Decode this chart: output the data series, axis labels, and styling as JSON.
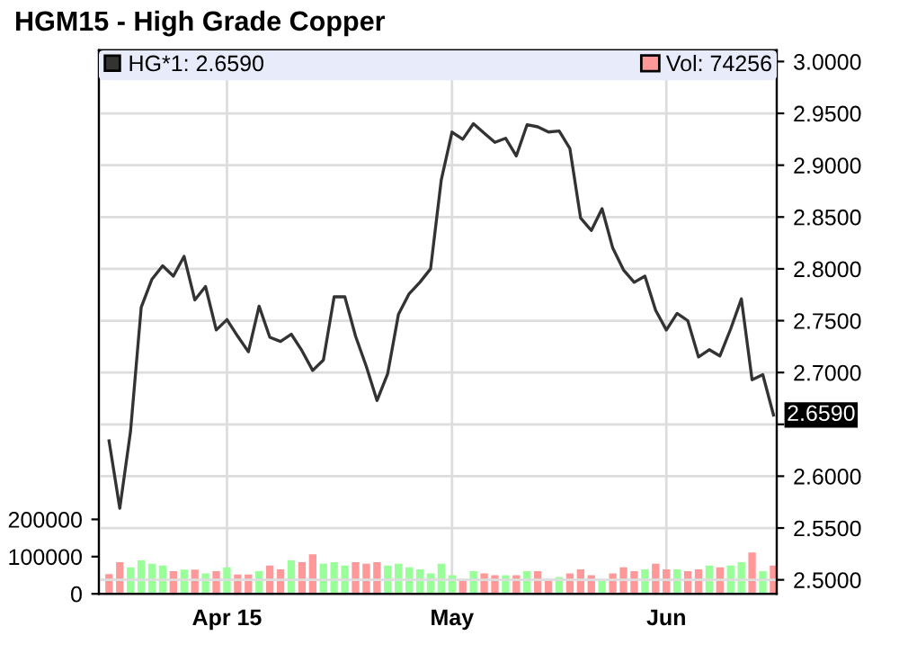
{
  "chart_data": {
    "type": "line",
    "title": "HGM15 - High Grade Copper",
    "categories": [
      null,
      null,
      null,
      null,
      null,
      null,
      null,
      null,
      null,
      null,
      null,
      "Apr 15",
      null,
      null,
      null,
      null,
      null,
      null,
      null,
      null,
      null,
      null,
      null,
      null,
      null,
      null,
      null,
      null,
      null,
      null,
      null,
      null,
      "May",
      null,
      null,
      null,
      null,
      null,
      null,
      null,
      null,
      null,
      null,
      null,
      null,
      null,
      null,
      null,
      null,
      null,
      null,
      null,
      "Jun",
      null,
      null,
      null,
      null,
      null,
      null,
      null,
      null,
      null,
      null
    ],
    "ylim": [
      0,
      1460000
    ],
    "yticks": [
      0,
      100000,
      200000
    ],
    "y2lim": [
      2.4865,
      3.0108
    ],
    "y2ticks": [
      {
        "value": 2.5,
        "label": "2.5000"
      },
      {
        "value": 2.55,
        "label": "2.5500"
      },
      {
        "value": 2.6,
        "label": "2.6000"
      },
      {
        "value": 2.65,
        "label": null
      },
      {
        "value": 2.7,
        "label": "2.7000"
      },
      {
        "value": 2.75,
        "label": "2.7500"
      },
      {
        "value": 2.8,
        "label": "2.8000"
      },
      {
        "value": 2.85,
        "label": "2.8500"
      },
      {
        "value": 2.9,
        "label": "2.9000"
      },
      {
        "value": 2.95,
        "label": "2.9500"
      },
      {
        "value": 3.0,
        "label": "3.0000"
      }
    ],
    "grid": true,
    "legend": "top left",
    "annotations": [
      "2.6590"
    ],
    "series": [
      {
        "name": "HG*1: 2.6590",
        "axis": "y2",
        "color": "#333333",
        "values": [
          2.634,
          2.569,
          2.643,
          2.763,
          2.79,
          2.803,
          2.793,
          2.812,
          2.77,
          2.783,
          2.741,
          2.751,
          2.735,
          2.72,
          2.764,
          2.734,
          2.73,
          2.737,
          2.721,
          2.702,
          2.712,
          2.773,
          2.773,
          2.735,
          2.706,
          2.673,
          2.699,
          2.756,
          2.776,
          2.787,
          2.8,
          2.886,
          2.932,
          2.925,
          2.94,
          2.931,
          2.922,
          2.926,
          2.909,
          2.939,
          2.937,
          2.932,
          2.933,
          2.916,
          2.849,
          2.837,
          2.858,
          2.82,
          2.799,
          2.787,
          2.793,
          2.76,
          2.741,
          2.757,
          2.75,
          2.715,
          2.722,
          2.716,
          2.742,
          2.771,
          2.693,
          2.698,
          2.659
        ]
      },
      {
        "name": "Vol: 74256",
        "type": "bar",
        "axis": "y",
        "color": "#ff9999",
        "values": [
          53000,
          85000,
          71000,
          90000,
          81000,
          76000,
          61000,
          65000,
          65000,
          55000,
          61000,
          71000,
          52000,
          52000,
          61000,
          76000,
          66000,
          90000,
          85000,
          106000,
          81000,
          85000,
          76000,
          85000,
          81000,
          85000,
          76000,
          81000,
          71000,
          66000,
          55000,
          81000,
          50000,
          35000,
          61000,
          55000,
          50000,
          50000,
          50000,
          61000,
          61000,
          40000,
          45000,
          55000,
          66000,
          50000,
          40000,
          55000,
          71000,
          61000,
          66000,
          81000,
          66000,
          66000,
          61000,
          66000,
          76000,
          71000,
          76000,
          85000,
          111000,
          61000,
          76000
        ],
        "colors": [
          "#ff9999",
          "#ff9999",
          "#99ff99",
          "#99ff99",
          "#99ff99",
          "#99ff99",
          "#ff9999",
          "#99ff99",
          "#ff9999",
          "#99ff99",
          "#ff9999",
          "#99ff99",
          "#ff9999",
          "#ff9999",
          "#99ff99",
          "#ff9999",
          "#ff9999",
          "#99ff99",
          "#ff9999",
          "#ff9999",
          "#99ff99",
          "#99ff99",
          "#99ff99",
          "#ff9999",
          "#ff9999",
          "#ff9999",
          "#99ff99",
          "#99ff99",
          "#99ff99",
          "#99ff99",
          "#99ff99",
          "#99ff99",
          "#99ff99",
          "#ff9999",
          "#99ff99",
          "#ff9999",
          "#ff9999",
          "#99ff99",
          "#ff9999",
          "#99ff99",
          "#ff9999",
          "#ff9999",
          "#99ff99",
          "#ff9999",
          "#ff9999",
          "#ff9999",
          "#99ff99",
          "#ff9999",
          "#ff9999",
          "#ff9999",
          "#99ff99",
          "#ff9999",
          "#ff9999",
          "#99ff99",
          "#ff9999",
          "#ff9999",
          "#99ff99",
          "#ff9999",
          "#99ff99",
          "#99ff99",
          "#ff9999",
          "#99ff99",
          "#ff9999"
        ]
      }
    ]
  }
}
